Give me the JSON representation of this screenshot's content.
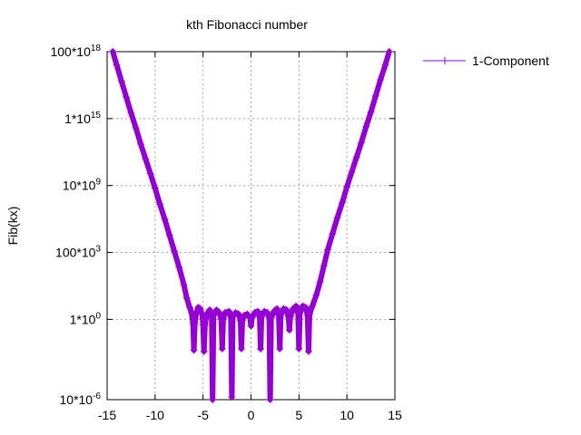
{
  "chart_data": {
    "type": "line",
    "title": "kth Fibonacci number",
    "xlabel": "",
    "ylabel": "Fib(kx)",
    "xlim": [
      -15,
      15
    ],
    "ylim_log10": [
      -6,
      20
    ],
    "y_scale": "log",
    "grid": true,
    "legend_position": "top-right-outside",
    "x_ticks": [
      {
        "value": -15,
        "label": "-15"
      },
      {
        "value": -10,
        "label": "-10"
      },
      {
        "value": -5,
        "label": "-5"
      },
      {
        "value": 0,
        "label": "0"
      },
      {
        "value": 5,
        "label": "5"
      },
      {
        "value": 10,
        "label": "10"
      },
      {
        "value": 15,
        "label": "15"
      }
    ],
    "y_ticks": [
      {
        "log10": -6,
        "base": "10*10",
        "exp": "-6"
      },
      {
        "log10": 0,
        "base": "1*10",
        "exp": "0"
      },
      {
        "log10": 5,
        "base": "100*10",
        "exp": "3"
      },
      {
        "log10": 10,
        "base": "10*10",
        "exp": "9"
      },
      {
        "log10": 15,
        "base": "1*10",
        "exp": "15"
      },
      {
        "log10": 20,
        "base": "100*10",
        "exp": "18"
      }
    ],
    "series": [
      {
        "name": "1-Component",
        "color": "#9400d3",
        "marker": "plus",
        "points": [
          [
            -14.4,
            20
          ],
          [
            -14.0,
            19.0
          ],
          [
            -13.5,
            17.8
          ],
          [
            -13.0,
            16.6
          ],
          [
            -12.5,
            15.4
          ],
          [
            -12.0,
            14.3
          ],
          [
            -11.5,
            13.1
          ],
          [
            -11.0,
            12.0
          ],
          [
            -10.5,
            10.9
          ],
          [
            -10.0,
            9.8
          ],
          [
            -9.5,
            8.6
          ],
          [
            -9.0,
            7.5
          ],
          [
            -8.5,
            6.3
          ],
          [
            -8.0,
            5.1
          ],
          [
            -7.5,
            3.9
          ],
          [
            -7.0,
            2.6
          ],
          [
            -6.7,
            1.6
          ],
          [
            -6.4,
            0.9
          ],
          [
            -6.2,
            0.5
          ],
          [
            -6.05,
            -0.3
          ],
          [
            -5.95,
            -2.3
          ],
          [
            -5.85,
            -0.3
          ],
          [
            -5.7,
            0.5
          ],
          [
            -5.5,
            0.9
          ],
          [
            -5.3,
            0.8
          ],
          [
            -5.1,
            0.4
          ],
          [
            -5.0,
            -0.4
          ],
          [
            -4.9,
            -2.4
          ],
          [
            -4.8,
            -0.4
          ],
          [
            -4.6,
            0.4
          ],
          [
            -4.3,
            0.7
          ],
          [
            -4.1,
            0.3
          ],
          [
            -4.0,
            -6.0
          ],
          [
            -3.9,
            0.3
          ],
          [
            -3.6,
            0.7
          ],
          [
            -3.3,
            0.5
          ],
          [
            -3.1,
            0.0
          ],
          [
            -3.0,
            -2.2
          ],
          [
            -2.9,
            0.0
          ],
          [
            -2.7,
            0.5
          ],
          [
            -2.3,
            0.6
          ],
          [
            -2.1,
            0.2
          ],
          [
            -2.0,
            -5.8
          ],
          [
            -1.9,
            0.2
          ],
          [
            -1.6,
            0.5
          ],
          [
            -1.3,
            0.4
          ],
          [
            -1.1,
            -0.1
          ],
          [
            -1.0,
            -2.2
          ],
          [
            -0.9,
            -0.1
          ],
          [
            -0.7,
            0.3
          ],
          [
            -0.4,
            0.4
          ],
          [
            -0.1,
            0.1
          ],
          [
            0.0,
            -0.5
          ],
          [
            0.1,
            0.1
          ],
          [
            0.4,
            0.5
          ],
          [
            0.7,
            0.6
          ],
          [
            0.9,
            0.2
          ],
          [
            1.0,
            -2.2
          ],
          [
            1.1,
            0.2
          ],
          [
            1.4,
            0.6
          ],
          [
            1.7,
            0.5
          ],
          [
            1.9,
            0.1
          ],
          [
            2.0,
            -6.0
          ],
          [
            2.1,
            0.1
          ],
          [
            2.4,
            0.6
          ],
          [
            2.7,
            0.8
          ],
          [
            2.9,
            0.3
          ],
          [
            3.0,
            -2.2
          ],
          [
            3.1,
            0.3
          ],
          [
            3.4,
            0.8
          ],
          [
            3.7,
            0.7
          ],
          [
            3.9,
            0.2
          ],
          [
            4.0,
            -0.8
          ],
          [
            4.1,
            0.2
          ],
          [
            4.4,
            0.8
          ],
          [
            4.7,
            1.0
          ],
          [
            4.9,
            0.5
          ],
          [
            5.0,
            -2.2
          ],
          [
            5.1,
            0.5
          ],
          [
            5.4,
            1.0
          ],
          [
            5.7,
            0.9
          ],
          [
            5.9,
            0.3
          ],
          [
            6.0,
            -2.4
          ],
          [
            6.1,
            0.4
          ],
          [
            6.4,
            1.0
          ],
          [
            6.8,
            1.8
          ],
          [
            7.2,
            2.8
          ],
          [
            7.6,
            4.0
          ],
          [
            8.0,
            5.2
          ],
          [
            8.5,
            6.4
          ],
          [
            9.0,
            7.6
          ],
          [
            9.5,
            8.7
          ],
          [
            10.0,
            9.9
          ],
          [
            10.5,
            11.0
          ],
          [
            11.0,
            12.1
          ],
          [
            11.5,
            13.2
          ],
          [
            12.0,
            14.4
          ],
          [
            12.5,
            15.5
          ],
          [
            13.0,
            16.7
          ],
          [
            13.5,
            17.9
          ],
          [
            14.0,
            19.0
          ],
          [
            14.4,
            20
          ]
        ]
      }
    ]
  }
}
